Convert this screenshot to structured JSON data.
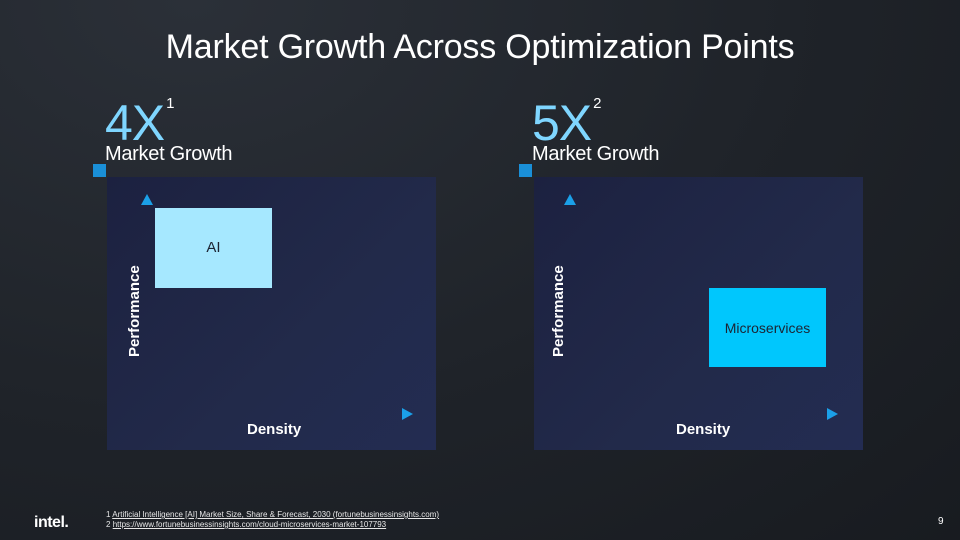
{
  "title": "Market Growth Across Optimization Points",
  "colors": {
    "accent": "#7fd6ff",
    "arrow": "#1ba0e8",
    "marker": "#1a8fd8",
    "ai_box": "#a6e8ff",
    "microservices_box": "#00c7fd"
  },
  "left": {
    "stat": "4X",
    "sup": "1",
    "subtitle": "Market Growth",
    "ylabel": "Performance",
    "xlabel": "Density",
    "box_label": "AI"
  },
  "right": {
    "stat": "5X",
    "sup": "2",
    "subtitle": "Market Growth",
    "ylabel": "Performance",
    "xlabel": "Density",
    "box_label": "Microservices"
  },
  "footnotes": {
    "n1": "1",
    "t1": "Artificial Intelligence [AI] Market Size, Share & Forecast, 2030 (fortunebusinessinsights.com)",
    "n2": "2",
    "t2": "https://www.fortunebusinessinsights.com/cloud-microservices-market-107793"
  },
  "logo": "intel.",
  "page_number": "9"
}
